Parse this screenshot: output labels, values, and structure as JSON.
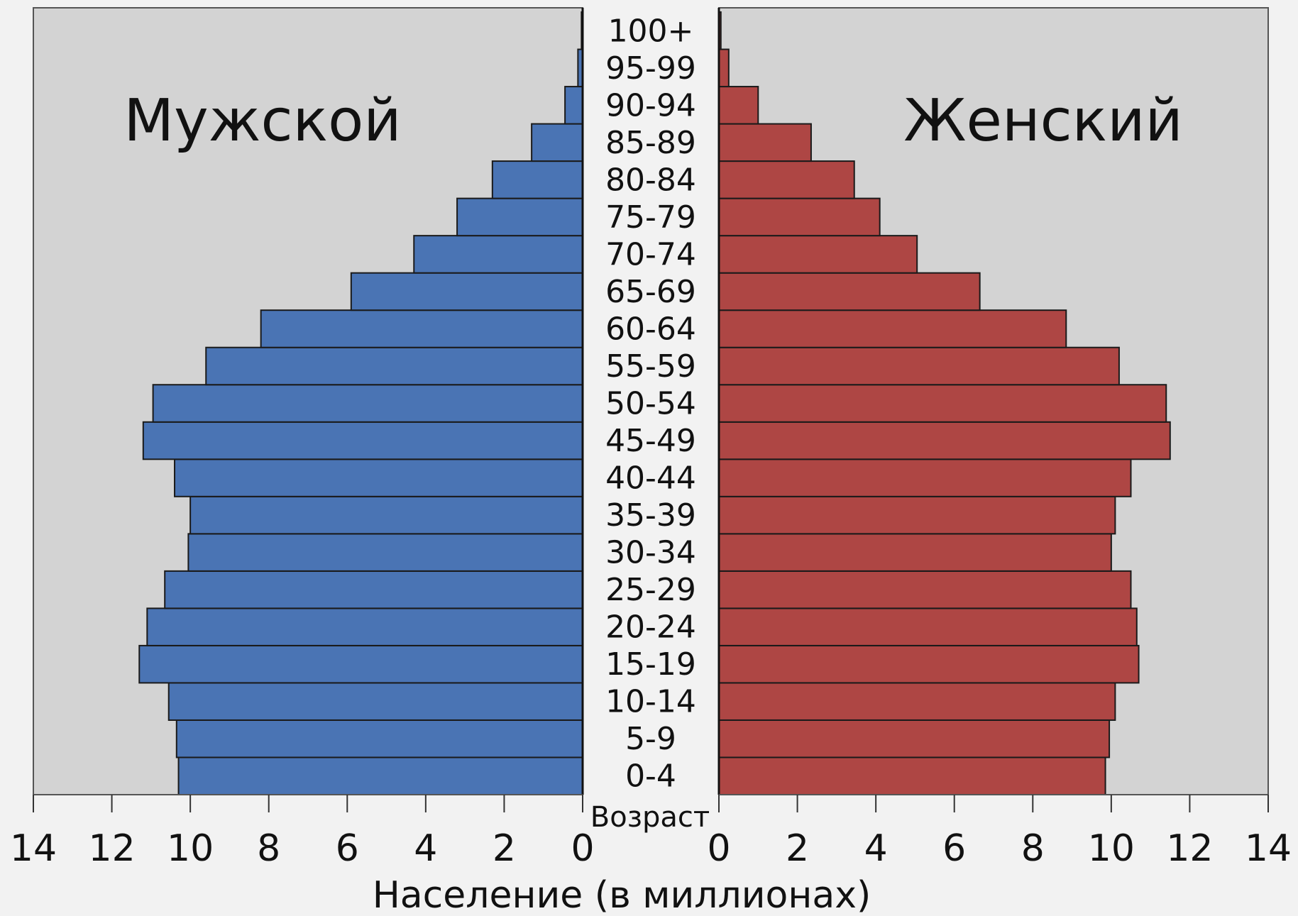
{
  "chart_data": {
    "type": "bar",
    "layout": "population-pyramid",
    "categories": [
      "0-4",
      "5-9",
      "10-14",
      "15-19",
      "20-24",
      "25-29",
      "30-34",
      "35-39",
      "40-44",
      "45-49",
      "50-54",
      "55-59",
      "60-64",
      "65-69",
      "70-74",
      "75-79",
      "80-84",
      "85-89",
      "90-94",
      "95-99",
      "100+"
    ],
    "series": [
      {
        "name": "Мужской",
        "side": "left",
        "color": "#4a74b4",
        "values": [
          10.3,
          10.35,
          10.55,
          11.3,
          11.1,
          10.65,
          10.05,
          10.0,
          10.4,
          11.2,
          10.95,
          9.6,
          8.2,
          5.9,
          4.3,
          3.2,
          2.3,
          1.3,
          0.45,
          0.12,
          0.03
        ]
      },
      {
        "name": "Женский",
        "side": "right",
        "color": "#ae4644",
        "values": [
          9.85,
          9.95,
          10.1,
          10.7,
          10.65,
          10.5,
          10.0,
          10.1,
          10.5,
          11.5,
          11.4,
          10.2,
          8.85,
          6.65,
          5.05,
          4.1,
          3.45,
          2.35,
          1.0,
          0.25,
          0.05
        ]
      }
    ],
    "xlim": [
      0,
      14
    ],
    "xticks": [
      "0",
      "2",
      "4",
      "6",
      "8",
      "10",
      "12",
      "14"
    ],
    "xlabel": "Население (в миллионах)",
    "age_axis_title": "Возраст",
    "grid": false
  }
}
